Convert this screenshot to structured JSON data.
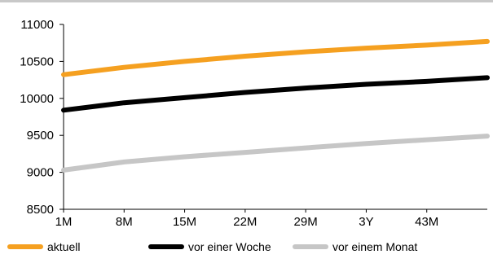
{
  "chart_data": {
    "type": "line",
    "title": "",
    "xlabel": "",
    "ylabel": "",
    "ylim": [
      8500,
      11000
    ],
    "yticks": [
      8500,
      9000,
      9500,
      10000,
      10500,
      11000
    ],
    "categories": [
      "1M",
      "8M",
      "15M",
      "22M",
      "29M",
      "3Y",
      "43M"
    ],
    "x_tick_positions": [
      1,
      8,
      15,
      22,
      29,
      36,
      43
    ],
    "x_range": [
      1,
      50
    ],
    "grid": false,
    "legend_position": "bottom",
    "series": [
      {
        "name": "aktuell",
        "color": "#F5A020",
        "x": [
          1,
          8,
          15,
          22,
          29,
          36,
          43,
          50
        ],
        "values": [
          10320,
          10420,
          10500,
          10570,
          10630,
          10680,
          10720,
          10770
        ]
      },
      {
        "name": "vor einer Woche",
        "color": "#000000",
        "x": [
          1,
          8,
          15,
          22,
          29,
          36,
          43,
          50
        ],
        "values": [
          9840,
          9940,
          10010,
          10080,
          10140,
          10190,
          10230,
          10280
        ]
      },
      {
        "name": "vor einem Monat",
        "color": "#C6C6C6",
        "x": [
          1,
          8,
          15,
          22,
          29,
          36,
          43,
          50
        ],
        "values": [
          9030,
          9140,
          9210,
          9270,
          9330,
          9390,
          9440,
          9490
        ]
      }
    ]
  }
}
